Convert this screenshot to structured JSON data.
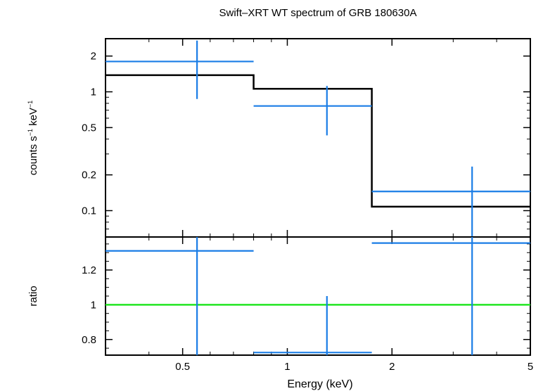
{
  "chart_data": {
    "type": "step-spectrum",
    "title": "Swift–XRT WT spectrum of GRB 180630A",
    "xlabel": "Energy (keV)",
    "x_log": true,
    "xlim": [
      0.3,
      5
    ],
    "x_ticks": [
      {
        "value": 0.5,
        "label": "0.5"
      },
      {
        "value": 1,
        "label": "1"
      },
      {
        "value": 2,
        "label": "2"
      },
      {
        "value": 5,
        "label": "5"
      }
    ],
    "top_panel": {
      "ylabel_parts": [
        "counts s",
        "−1",
        " keV",
        "−1"
      ],
      "y_log": true,
      "ylim": [
        0.06,
        2.8
      ],
      "y_ticks": [
        {
          "value": 2,
          "label": "2"
        },
        {
          "value": 1,
          "label": "1"
        },
        {
          "value": 0.5,
          "label": "0.5"
        },
        {
          "value": 0.2,
          "label": "0.2"
        },
        {
          "value": 0.1,
          "label": "0.1"
        }
      ],
      "data": [
        {
          "x": 0.55,
          "xlo": 0.3,
          "xhi": 0.8,
          "y": 1.8,
          "ylo": 0.87,
          "yhi": 2.7
        },
        {
          "x": 1.3,
          "xlo": 0.8,
          "xhi": 1.75,
          "y": 0.76,
          "ylo": 0.43,
          "yhi": 1.12
        },
        {
          "x": 3.4,
          "xlo": 1.75,
          "xhi": 5,
          "y": 0.145,
          "ylo": 0.06,
          "yhi": 0.235
        }
      ],
      "model": [
        {
          "xlo": 0.3,
          "xhi": 0.8,
          "y": 1.38
        },
        {
          "xlo": 0.8,
          "xhi": 1.75,
          "y": 1.06
        },
        {
          "xlo": 1.75,
          "xhi": 5,
          "y": 0.108
        }
      ]
    },
    "bottom_panel": {
      "ylabel": "ratio",
      "y_log": false,
      "ylim": [
        0.71,
        1.39
      ],
      "y_ticks": [
        {
          "value": 1.2,
          "label": "1.2"
        },
        {
          "value": 1,
          "label": "1"
        },
        {
          "value": 0.8,
          "label": "0.8"
        }
      ],
      "reference_line": 1,
      "data": [
        {
          "x": 0.55,
          "xlo": 0.3,
          "xhi": 0.8,
          "y": 1.31,
          "ylo": 0.71,
          "yhi": 1.39
        },
        {
          "x": 1.3,
          "xlo": 0.8,
          "xhi": 1.75,
          "y": 0.725,
          "ylo": 0.71,
          "yhi": 1.05
        },
        {
          "x": 3.4,
          "xlo": 1.75,
          "xhi": 5,
          "y": 1.355,
          "ylo": 0.71,
          "yhi": 1.39
        }
      ]
    },
    "colors": {
      "data": "#1a7de6",
      "model": "#000000",
      "reference": "#22e622",
      "axes": "#000000"
    }
  }
}
